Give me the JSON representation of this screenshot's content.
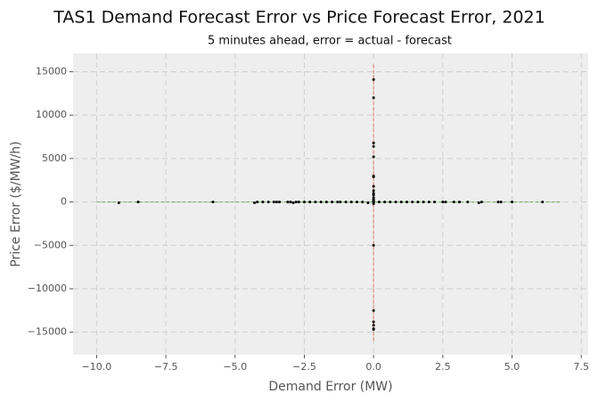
{
  "chart_data": {
    "type": "scatter",
    "title": "TAS1 Demand Forecast Error vs Price Forecast Error, 2021",
    "subtitle": "5 minutes ahead, error = actual - forecast",
    "xlabel": "Demand Error (MW)",
    "ylabel": "Price Error ($/MW/h)",
    "xlim": [
      -10.85,
      7.75
    ],
    "ylim": [
      -17600,
      17100
    ],
    "xticks": [
      {
        "value": -10,
        "label": "−10.0"
      },
      {
        "value": -7.5,
        "label": "−7.5"
      },
      {
        "value": -5,
        "label": "−5.0"
      },
      {
        "value": -2.5,
        "label": "−2.5"
      },
      {
        "value": 0,
        "label": "0.0"
      },
      {
        "value": 2.5,
        "label": "2.5"
      },
      {
        "value": 5,
        "label": "5.0"
      },
      {
        "value": 7.5,
        "label": "7.5"
      }
    ],
    "yticks": [
      {
        "value": -15000,
        "label": "−15000"
      },
      {
        "value": -10000,
        "label": "−10000"
      },
      {
        "value": -5000,
        "label": "−5000"
      },
      0,
      5000,
      10000,
      15000
    ],
    "grid": true,
    "hline": {
      "y": 0,
      "xmin": -10,
      "xmax": 6.8,
      "color": "#6aaa5a"
    },
    "vline": {
      "x": 0,
      "ymin": -16000,
      "ymax": 15800,
      "color": "#e07a6a"
    },
    "series": [
      {
        "color": "#000000",
        "x": [
          -9.2,
          -8.5,
          -5.8,
          -4.3,
          -4.2,
          -4.0,
          -3.8,
          -3.6,
          -3.5,
          -3.4,
          -3.1,
          -3.0,
          -2.9,
          -2.8,
          -2.7,
          -2.5,
          -2.3,
          -2.1,
          -1.9,
          -1.7,
          -1.5,
          -1.3,
          -1.2,
          -1.0,
          -0.8,
          -0.6,
          -0.4,
          -0.2,
          0.2,
          0.4,
          0.6,
          0.8,
          1.0,
          1.2,
          1.4,
          1.6,
          1.8,
          2.0,
          2.2,
          2.5,
          2.6,
          2.9,
          3.1,
          3.4,
          3.8,
          3.9,
          4.5,
          4.6,
          5.0,
          6.1,
          0,
          0,
          0,
          0,
          0,
          0,
          0,
          0,
          0,
          0,
          0,
          0,
          0,
          0,
          0,
          0,
          0,
          0,
          0,
          0,
          0,
          0,
          0
        ],
        "values": [
          -100,
          0,
          0,
          -100,
          0,
          0,
          0,
          0,
          0,
          0,
          0,
          0,
          -100,
          0,
          0,
          0,
          0,
          0,
          0,
          0,
          0,
          0,
          0,
          0,
          0,
          0,
          0,
          -100,
          0,
          0,
          0,
          0,
          0,
          0,
          0,
          0,
          0,
          0,
          0,
          0,
          0,
          0,
          0,
          0,
          -100,
          0,
          0,
          0,
          0,
          0,
          14100,
          12000,
          6800,
          6400,
          5200,
          3000,
          2900,
          1800,
          1300,
          1000,
          800,
          500,
          300,
          200,
          100,
          -100,
          -200,
          -5000,
          -12500,
          -13800,
          -14200,
          -14600,
          -14700
        ]
      }
    ]
  }
}
